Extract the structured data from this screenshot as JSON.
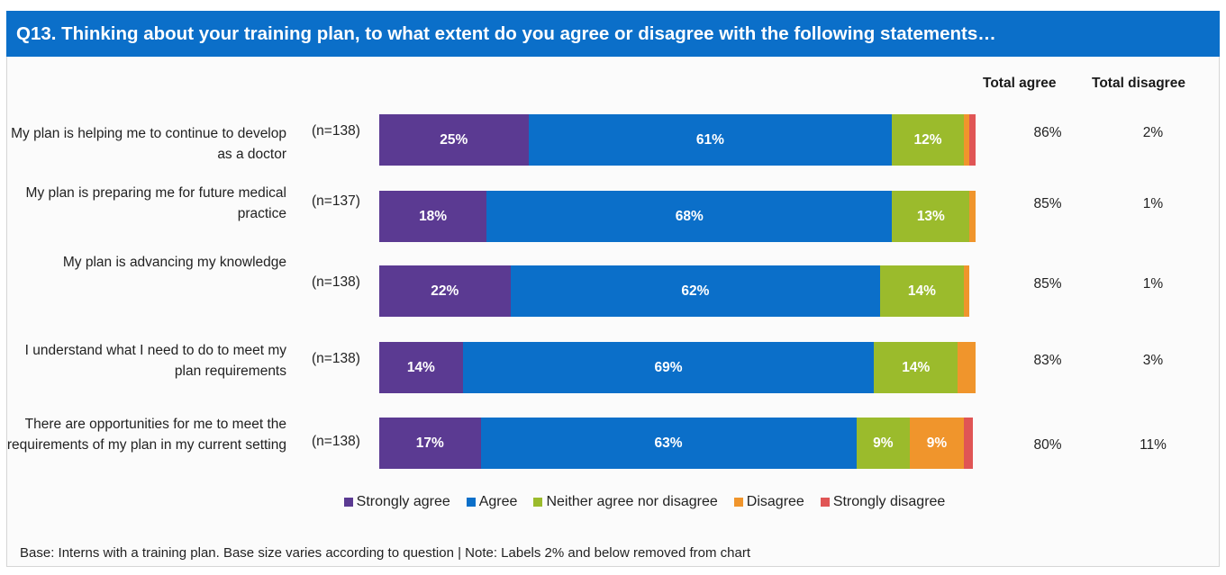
{
  "title": "Q13. Thinking about your training plan, to what extent do you agree or disagree with the following statements…",
  "columns": {
    "total_agree": "Total agree",
    "total_disagree": "Total disagree"
  },
  "footnote": "Base:  Interns with a training plan. Base size varies according to question | Note: Labels 2% and below removed from chart",
  "colors": {
    "Strongly agree": "#5b3a92",
    "Agree": "#0b6fc9",
    "Neither agree nor disagree": "#9bbb2c",
    "Disagree": "#f0952c",
    "Strongly disagree": "#e05555"
  },
  "chart_data": {
    "type": "bar",
    "orientation": "horizontal",
    "stacked": true,
    "title": "",
    "xlabel": "",
    "ylabel": "",
    "legend_position": "bottom",
    "categories": [
      "My plan is helping me to continue to develop as a doctor",
      "My plan is preparing me for future medical practice",
      "My plan is advancing my knowledge",
      "I understand what I need to do to meet my plan requirements",
      "There are opportunities for me to meet the requirements of my plan in my current setting"
    ],
    "bases": [
      "(n=138)",
      "(n=137)",
      "(n=138)",
      "(n=138)",
      "(n=138)"
    ],
    "series": [
      {
        "name": "Strongly agree",
        "values": [
          25,
          18,
          22,
          14,
          17
        ],
        "labels": [
          "25%",
          "18%",
          "22%",
          "14%",
          "17%"
        ]
      },
      {
        "name": "Agree",
        "values": [
          61,
          68,
          62,
          69,
          63
        ],
        "labels": [
          "61%",
          "68%",
          "62%",
          "69%",
          "63%"
        ]
      },
      {
        "name": "Neither agree nor disagree",
        "values": [
          12,
          13,
          14,
          14,
          9
        ],
        "labels": [
          "12%",
          "13%",
          "14%",
          "14%",
          "9%"
        ]
      },
      {
        "name": "Disagree",
        "values": [
          1,
          1,
          1,
          3,
          9
        ],
        "labels": [
          "",
          "",
          "",
          "",
          "9%"
        ]
      },
      {
        "name": "Strongly disagree",
        "values": [
          1,
          0,
          0,
          0,
          1.5
        ],
        "labels": [
          "",
          "",
          "",
          "",
          ""
        ]
      }
    ],
    "total_agree": [
      "86%",
      "85%",
      "85%",
      "83%",
      "80%"
    ],
    "total_disagree": [
      "2%",
      "1%",
      "1%",
      "3%",
      "11%"
    ]
  }
}
